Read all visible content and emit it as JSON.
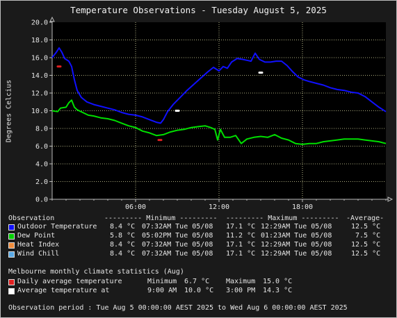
{
  "title": "Temperature Observations - Tuesday August 5, 2025",
  "chart_data": {
    "type": "line",
    "ylabel": "Degrees Celcius",
    "xlabel": "",
    "ylim": [
      0,
      20
    ],
    "yticks": [
      "0.0",
      "2.0",
      "4.0",
      "6.0",
      "8.0",
      "10.0",
      "12.0",
      "14.0",
      "16.0",
      "18.0",
      "20.0"
    ],
    "xlim_hours": [
      0,
      24
    ],
    "xticks": [
      {
        "hour": 6,
        "label": "06:00"
      },
      {
        "hour": 12,
        "label": "12:00"
      },
      {
        "hour": 18,
        "label": "18:00"
      }
    ],
    "grid": true,
    "series": [
      {
        "name": "Outdoor Temperature",
        "color": "#1010ff",
        "points": [
          [
            0,
            16.0
          ],
          [
            0.3,
            16.6
          ],
          [
            0.5,
            17.1
          ],
          [
            0.7,
            16.6
          ],
          [
            0.9,
            15.9
          ],
          [
            1.2,
            15.6
          ],
          [
            1.4,
            15.0
          ],
          [
            1.6,
            13.5
          ],
          [
            1.8,
            12.3
          ],
          [
            2.1,
            11.5
          ],
          [
            2.5,
            11.0
          ],
          [
            3,
            10.7
          ],
          [
            3.5,
            10.5
          ],
          [
            4,
            10.3
          ],
          [
            4.5,
            10.1
          ],
          [
            5,
            9.8
          ],
          [
            5.5,
            9.6
          ],
          [
            6,
            9.5
          ],
          [
            6.5,
            9.3
          ],
          [
            7,
            9.0
          ],
          [
            7.5,
            8.7
          ],
          [
            7.8,
            8.6
          ],
          [
            8.0,
            9.0
          ],
          [
            8.3,
            9.9
          ],
          [
            8.7,
            10.7
          ],
          [
            9.2,
            11.5
          ],
          [
            9.7,
            12.3
          ],
          [
            10.2,
            13.0
          ],
          [
            10.7,
            13.7
          ],
          [
            11.2,
            14.4
          ],
          [
            11.6,
            14.9
          ],
          [
            12.0,
            14.5
          ],
          [
            12.3,
            15.0
          ],
          [
            12.6,
            14.8
          ],
          [
            12.9,
            15.5
          ],
          [
            13.3,
            15.9
          ],
          [
            13.7,
            15.8
          ],
          [
            14.0,
            15.7
          ],
          [
            14.3,
            15.6
          ],
          [
            14.6,
            16.5
          ],
          [
            14.9,
            15.8
          ],
          [
            15.3,
            15.5
          ],
          [
            15.7,
            15.5
          ],
          [
            16.1,
            15.6
          ],
          [
            16.5,
            15.6
          ],
          [
            16.9,
            15.1
          ],
          [
            17.3,
            14.4
          ],
          [
            17.7,
            13.8
          ],
          [
            18.1,
            13.5
          ],
          [
            18.5,
            13.3
          ],
          [
            19,
            13.1
          ],
          [
            19.5,
            12.9
          ],
          [
            20,
            12.6
          ],
          [
            20.5,
            12.4
          ],
          [
            21,
            12.3
          ],
          [
            21.5,
            12.1
          ],
          [
            22,
            12.0
          ],
          [
            22.5,
            11.6
          ],
          [
            23,
            11.0
          ],
          [
            23.5,
            10.4
          ],
          [
            24,
            9.9
          ]
        ]
      },
      {
        "name": "Dew Point",
        "color": "#00e000",
        "points": [
          [
            0,
            10.0
          ],
          [
            0.4,
            9.9
          ],
          [
            0.6,
            10.3
          ],
          [
            1.0,
            10.4
          ],
          [
            1.2,
            10.9
          ],
          [
            1.4,
            11.2
          ],
          [
            1.6,
            10.4
          ],
          [
            1.8,
            10.1
          ],
          [
            2.2,
            9.8
          ],
          [
            2.6,
            9.5
          ],
          [
            3,
            9.4
          ],
          [
            3.5,
            9.2
          ],
          [
            4,
            9.1
          ],
          [
            4.5,
            8.9
          ],
          [
            5,
            8.6
          ],
          [
            5.5,
            8.3
          ],
          [
            6,
            8.1
          ],
          [
            6.5,
            7.7
          ],
          [
            7,
            7.5
          ],
          [
            7.5,
            7.2
          ],
          [
            8,
            7.3
          ],
          [
            8.5,
            7.6
          ],
          [
            9,
            7.8
          ],
          [
            9.5,
            7.9
          ],
          [
            10,
            8.1
          ],
          [
            10.5,
            8.2
          ],
          [
            11,
            8.3
          ],
          [
            11.4,
            8.1
          ],
          [
            11.7,
            7.9
          ],
          [
            11.9,
            6.7
          ],
          [
            12.1,
            7.9
          ],
          [
            12.4,
            7.0
          ],
          [
            12.8,
            7.0
          ],
          [
            13.2,
            7.2
          ],
          [
            13.6,
            6.3
          ],
          [
            14,
            6.8
          ],
          [
            14.5,
            7.0
          ],
          [
            15,
            7.1
          ],
          [
            15.5,
            7.0
          ],
          [
            16,
            7.3
          ],
          [
            16.5,
            6.9
          ],
          [
            17,
            6.7
          ],
          [
            17.5,
            6.3
          ],
          [
            18,
            6.2
          ],
          [
            18.5,
            6.3
          ],
          [
            19,
            6.3
          ],
          [
            19.5,
            6.5
          ],
          [
            20,
            6.6
          ],
          [
            20.5,
            6.7
          ],
          [
            21,
            6.8
          ],
          [
            21.5,
            6.8
          ],
          [
            22,
            6.8
          ],
          [
            22.5,
            6.7
          ],
          [
            23,
            6.6
          ],
          [
            23.5,
            6.5
          ],
          [
            24,
            6.3
          ]
        ]
      }
    ],
    "markers": [
      {
        "name": "Daily average temperature minimum",
        "hour": 7.75,
        "value": 6.7,
        "color": "#e02020"
      },
      {
        "name": "Daily average temperature maximum",
        "hour": 0.5,
        "value": 15.0,
        "color": "#e02020"
      },
      {
        "name": "Average temperature at 9:00 AM",
        "hour": 9.0,
        "value": 10.0,
        "color": "#ffffff"
      },
      {
        "name": "Average temperature at 3:00 PM",
        "hour": 15.0,
        "value": 14.3,
        "color": "#ffffff"
      }
    ]
  },
  "legend": {
    "header": {
      "observation": "Observation",
      "minimum": "--------- Minimum ---------",
      "maximum": "--------- Maximum ---------",
      "average": "-Average-"
    },
    "rows": [
      {
        "label": "Outdoor Temperature",
        "color": "#1010ff",
        "min": "8.4 °C",
        "min_time": "07:32AM Tue 05/08",
        "max": "17.1 °C",
        "max_time": "12:29AM Tue 05/08",
        "avg": "12.5 °C"
      },
      {
        "label": "Dew Point",
        "color": "#00d000",
        "min": "5.8 °C",
        "min_time": "05:02PM Tue 05/08",
        "max": "11.2 °C",
        "max_time": "01:23AM Tue 05/08",
        "avg": "7.5 °C"
      },
      {
        "label": "Heat Index",
        "color": "#f08c3c",
        "min": "8.4 °C",
        "min_time": "07:32AM Tue 05/08",
        "max": "17.1 °C",
        "max_time": "12:29AM Tue 05/08",
        "avg": "12.5 °C"
      },
      {
        "label": "Wind Chill",
        "color": "#5aaae6",
        "min": "8.4 °C",
        "min_time": "07:32AM Tue 05/08",
        "max": "17.1 °C",
        "max_time": "12:29AM Tue 05/08",
        "avg": "12.5 °C"
      }
    ]
  },
  "climate": {
    "header": "Melbourne monthly climate statistics (Aug)",
    "daily_label": "Daily average temperature",
    "daily_min_label": "Minimum",
    "daily_min": "6.7 °C",
    "daily_max_label": "Maximum",
    "daily_max": "15.0 °C",
    "daily_color": "#e02020",
    "avg_label": "Average temperature at",
    "avg_am_time": "9:00 AM",
    "avg_am": "10.0 °C",
    "avg_pm_time": "3:00 PM",
    "avg_pm": "14.3 °C",
    "avg_color": "#ffffff"
  },
  "period": "Observation period : Tue Aug 5 00:00:00 AEST 2025 to Wed Aug 6 00:00:00 AEST 2025"
}
